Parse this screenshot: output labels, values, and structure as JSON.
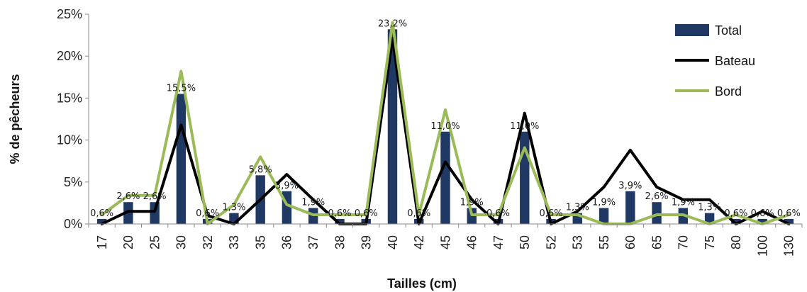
{
  "chart_data": {
    "type": "bar",
    "xlabel": "Tailles (cm)",
    "ylabel": "% de pêcheurs",
    "ylim": [
      0,
      25
    ],
    "yticks": [
      "0%",
      "5%",
      "10%",
      "15%",
      "20%",
      "25%"
    ],
    "categories": [
      "17",
      "20",
      "25",
      "30",
      "32",
      "33",
      "35",
      "36",
      "37",
      "38",
      "39",
      "40",
      "42",
      "45",
      "46",
      "47",
      "50",
      "52",
      "53",
      "55",
      "60",
      "65",
      "70",
      "75",
      "80",
      "100",
      "130"
    ],
    "legend_position": "top-right",
    "series": [
      {
        "name": "Total",
        "kind": "bar",
        "color": "#1f3864",
        "values": [
          0.6,
          2.6,
          2.6,
          15.5,
          0.6,
          1.3,
          5.8,
          3.9,
          1.9,
          0.6,
          0.6,
          23.2,
          0.6,
          11.0,
          1.9,
          0.6,
          11.0,
          0.6,
          1.3,
          1.9,
          3.9,
          2.6,
          1.9,
          1.3,
          0.6,
          0.6,
          0.6
        ],
        "labels": [
          "0,6%",
          "2,6%",
          "2,6%",
          "15,5%",
          "0,6%",
          "1,3%",
          "5,8%",
          "3,9%",
          "1,9%",
          "0,6%",
          "0,6%",
          "23,2%",
          "0,6%",
          "11,0%",
          "1,9%",
          "0,6%",
          "11,0%",
          "0,6%",
          "1,3%",
          "1,9%",
          "3,9%",
          "2,6%",
          "1,9%",
          "1,3%",
          "0,6%",
          "0,6%",
          "0,6%"
        ]
      },
      {
        "name": "Bateau",
        "kind": "line",
        "color": "#000000",
        "values": [
          0,
          1.5,
          1.5,
          11.8,
          1.0,
          0,
          2.9,
          5.9,
          2.9,
          0,
          0,
          22.1,
          0,
          7.4,
          2.9,
          0,
          13.2,
          0,
          1.5,
          4.4,
          8.8,
          4.4,
          2.9,
          2.9,
          0,
          1.5,
          0
        ]
      },
      {
        "name": "Bord",
        "kind": "line",
        "color": "#9bbb59",
        "values": [
          1.1,
          3.4,
          3.4,
          18.2,
          0,
          2.3,
          8.0,
          2.3,
          1.1,
          1.1,
          1.1,
          24.0,
          1.1,
          13.6,
          1.1,
          1.1,
          9.1,
          1.1,
          1.1,
          0,
          0,
          1.1,
          1.1,
          0,
          1.1,
          0,
          1.1
        ]
      }
    ]
  }
}
